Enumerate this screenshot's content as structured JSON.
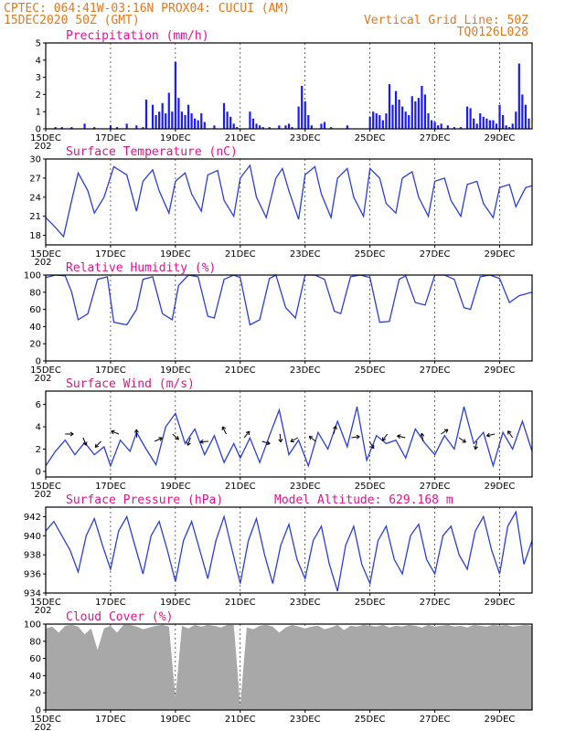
{
  "header": {
    "line1_left": "CPTEC:   064:41W-03:16N   PROX04: CUCUI (AM)",
    "line2_left": "15DEC2020 50Z (GMT)",
    "line2_right": "Vertical Grid Line: 50Z",
    "line3_right": "TQ0126L028"
  },
  "x_axis": {
    "tick_labels": [
      "15DEC",
      "17DEC",
      "19DEC",
      "21DEC",
      "23DEC",
      "25DEC",
      "27DEC",
      "29DEC"
    ],
    "tick_days": [
      0,
      2,
      4,
      6,
      8,
      10,
      12,
      14
    ],
    "year_fragment": "202",
    "xlim": [
      0,
      15
    ]
  },
  "chart_data": [
    {
      "type": "bar",
      "title": "Precipitation (mm/h)",
      "ylim": [
        0,
        5
      ],
      "yticks": [
        "0",
        "1",
        "2",
        "3",
        "4",
        "5"
      ],
      "color": "#1a1aff",
      "x_days": [
        0.3,
        0.5,
        0.8,
        1.2,
        1.5,
        2.0,
        2.2,
        2.5,
        2.8,
        3.0,
        3.1,
        3.3,
        3.4,
        3.5,
        3.6,
        3.7,
        3.8,
        3.9,
        4.0,
        4.1,
        4.2,
        4.3,
        4.4,
        4.5,
        4.6,
        4.7,
        4.8,
        4.9,
        5.2,
        5.5,
        5.6,
        5.7,
        5.8,
        5.9,
        6.3,
        6.4,
        6.5,
        6.6,
        6.7,
        6.9,
        7.2,
        7.4,
        7.5,
        7.6,
        7.8,
        7.9,
        8.0,
        8.1,
        8.2,
        8.5,
        8.6,
        8.8,
        9.3,
        10.0,
        10.1,
        10.2,
        10.3,
        10.4,
        10.5,
        10.6,
        10.7,
        10.8,
        10.9,
        11.0,
        11.1,
        11.2,
        11.3,
        11.4,
        11.5,
        11.6,
        11.7,
        11.8,
        11.9,
        12.0,
        12.1,
        12.2,
        12.4,
        12.6,
        12.8,
        13.0,
        13.1,
        13.2,
        13.3,
        13.4,
        13.5,
        13.6,
        13.7,
        13.8,
        13.9,
        14.0,
        14.1,
        14.2,
        14.3,
        14.4,
        14.5,
        14.6,
        14.7,
        14.8,
        14.9
      ],
      "values": [
        0.1,
        0.1,
        0.1,
        0.3,
        0.1,
        0.2,
        0.1,
        0.3,
        0.2,
        0.1,
        1.7,
        1.4,
        0.8,
        1.0,
        1.5,
        0.9,
        2.1,
        1.0,
        3.9,
        1.8,
        1.0,
        0.8,
        1.4,
        0.9,
        0.6,
        0.5,
        0.9,
        0.4,
        0.2,
        1.5,
        1.0,
        0.7,
        0.3,
        0.1,
        1.0,
        0.6,
        0.3,
        0.2,
        0.1,
        0.1,
        0.2,
        0.2,
        0.3,
        0.1,
        1.3,
        2.5,
        1.6,
        0.8,
        0.2,
        0.3,
        0.4,
        0.1,
        0.2,
        0.7,
        1.0,
        0.9,
        0.8,
        0.5,
        0.9,
        2.6,
        1.4,
        2.2,
        1.7,
        1.3,
        1.0,
        0.8,
        1.9,
        1.6,
        1.8,
        2.5,
        2.0,
        0.9,
        0.5,
        0.4,
        0.2,
        0.3,
        0.2,
        0.1,
        0.1,
        1.3,
        1.2,
        0.6,
        0.3,
        0.9,
        0.7,
        0.6,
        0.5,
        0.5,
        0.3,
        1.4,
        0.8,
        0.2,
        0.1,
        0.3,
        1.0,
        3.8,
        2.0,
        1.4,
        0.6
      ]
    },
    {
      "type": "line",
      "title": "Surface Temperature (nC)",
      "ylim": [
        16.5,
        30
      ],
      "yticks": [
        "18",
        "21",
        "24",
        "27",
        "30"
      ],
      "ytick_values": [
        18,
        21,
        24,
        27,
        30
      ],
      "x_days": [
        0,
        0.25,
        0.55,
        0.8,
        1.0,
        1.3,
        1.5,
        1.8,
        2.1,
        2.5,
        2.8,
        3.0,
        3.3,
        3.5,
        3.8,
        4.0,
        4.3,
        4.5,
        4.8,
        5.0,
        5.3,
        5.5,
        5.8,
        6.0,
        6.3,
        6.5,
        6.8,
        7.1,
        7.3,
        7.5,
        7.8,
        8.0,
        8.3,
        8.5,
        8.8,
        9.0,
        9.3,
        9.5,
        9.8,
        10.0,
        10.3,
        10.5,
        10.8,
        11.0,
        11.3,
        11.5,
        11.8,
        12.0,
        12.3,
        12.5,
        12.8,
        13.0,
        13.3,
        13.5,
        13.8,
        14.0,
        14.3,
        14.5,
        14.8,
        15.0
      ],
      "values": [
        20.8,
        19.5,
        17.8,
        23.5,
        27.8,
        25.0,
        21.5,
        24.0,
        28.8,
        27.5,
        21.8,
        26.5,
        28.3,
        25.0,
        21.5,
        26.5,
        27.8,
        24.5,
        21.8,
        27.5,
        28.2,
        23.5,
        21.0,
        27.0,
        29.0,
        24.0,
        20.8,
        27.0,
        28.5,
        25.0,
        20.5,
        27.5,
        28.8,
        24.5,
        20.8,
        27.0,
        28.5,
        24.0,
        21.0,
        28.5,
        27.0,
        23.0,
        21.5,
        27.0,
        28.0,
        24.0,
        21.0,
        26.5,
        27.0,
        23.5,
        21.0,
        26.0,
        26.5,
        23.0,
        20.8,
        25.5,
        26.0,
        22.5,
        25.5,
        25.8
      ],
      "color": "#2b3fd6"
    },
    {
      "type": "line",
      "title": "Relative Humidity (%)",
      "ylim": [
        0,
        100
      ],
      "yticks": [
        "0",
        "20",
        "40",
        "60",
        "80",
        "100"
      ],
      "ytick_values": [
        0,
        20,
        40,
        60,
        80,
        100
      ],
      "x_days": [
        0,
        0.3,
        0.6,
        0.8,
        1.0,
        1.3,
        1.6,
        1.9,
        2.1,
        2.5,
        2.8,
        3.0,
        3.3,
        3.6,
        3.9,
        4.1,
        4.4,
        4.7,
        5.0,
        5.2,
        5.5,
        5.8,
        6.0,
        6.3,
        6.6,
        6.9,
        7.1,
        7.4,
        7.7,
        8.0,
        8.3,
        8.6,
        8.9,
        9.1,
        9.4,
        9.7,
        10.0,
        10.3,
        10.6,
        10.9,
        11.1,
        11.4,
        11.7,
        12.0,
        12.3,
        12.6,
        12.9,
        13.1,
        13.4,
        13.7,
        14.0,
        14.3,
        14.6,
        15.0
      ],
      "values": [
        97,
        100,
        99,
        80,
        48,
        55,
        95,
        98,
        45,
        42,
        60,
        95,
        98,
        55,
        48,
        88,
        100,
        98,
        52,
        50,
        95,
        100,
        97,
        42,
        48,
        96,
        100,
        62,
        50,
        100,
        100,
        95,
        58,
        55,
        98,
        100,
        97,
        45,
        46,
        95,
        99,
        68,
        65,
        100,
        100,
        95,
        62,
        60,
        98,
        100,
        96,
        68,
        76,
        80
      ],
      "color": "#2b3fd6"
    },
    {
      "type": "line",
      "title": "Surface Wind (m/s)",
      "ylim": [
        -0.5,
        7.2
      ],
      "yticks": [
        "0",
        "2",
        "4",
        "6"
      ],
      "ytick_values": [
        0,
        2,
        4,
        6
      ],
      "x_days": [
        0,
        0.3,
        0.6,
        0.9,
        1.2,
        1.5,
        1.8,
        2.0,
        2.3,
        2.6,
        2.8,
        3.1,
        3.4,
        3.7,
        4.0,
        4.3,
        4.6,
        4.9,
        5.2,
        5.5,
        5.8,
        6.0,
        6.3,
        6.6,
        6.9,
        7.2,
        7.5,
        7.8,
        8.1,
        8.4,
        8.7,
        9.0,
        9.3,
        9.6,
        9.9,
        10.2,
        10.5,
        10.8,
        11.1,
        11.4,
        11.7,
        12.0,
        12.3,
        12.6,
        12.9,
        13.2,
        13.5,
        13.8,
        14.1,
        14.4,
        14.7,
        15.0
      ],
      "values": [
        0.5,
        1.8,
        2.8,
        1.5,
        2.6,
        1.5,
        2.2,
        0.5,
        2.8,
        1.8,
        3.5,
        2.0,
        0.6,
        4.0,
        5.2,
        2.5,
        3.8,
        1.5,
        3.2,
        0.8,
        2.5,
        1.2,
        3.0,
        0.8,
        3.2,
        5.5,
        1.5,
        2.8,
        0.5,
        3.5,
        2.0,
        4.5,
        2.2,
        5.8,
        1.0,
        3.2,
        2.5,
        2.8,
        1.2,
        3.8,
        2.5,
        1.5,
        3.2,
        2.0,
        5.8,
        2.5,
        3.5,
        0.5,
        3.5,
        2.0,
        4.5,
        1.8
      ],
      "color": "#2b3fd6",
      "arrows_count": 26
    },
    {
      "type": "line",
      "title": "Surface Pressure (hPa)",
      "annotation": "Model Altitude: 629.168  m",
      "ylim": [
        934,
        943
      ],
      "yticks": [
        "934",
        "936",
        "938",
        "940",
        "942"
      ],
      "ytick_values": [
        934,
        936,
        938,
        940,
        942
      ],
      "x_days": [
        0,
        0.25,
        0.5,
        0.75,
        1.0,
        1.25,
        1.5,
        1.75,
        2.0,
        2.25,
        2.5,
        2.75,
        3.0,
        3.25,
        3.5,
        3.75,
        4.0,
        4.25,
        4.5,
        4.75,
        5.0,
        5.25,
        5.5,
        5.75,
        6.0,
        6.25,
        6.5,
        6.75,
        7.0,
        7.25,
        7.5,
        7.75,
        8.0,
        8.25,
        8.5,
        8.75,
        9.0,
        9.25,
        9.5,
        9.75,
        10.0,
        10.25,
        10.5,
        10.75,
        11.0,
        11.25,
        11.5,
        11.75,
        12.0,
        12.25,
        12.5,
        12.75,
        13.0,
        13.25,
        13.5,
        13.75,
        14.0,
        14.25,
        14.5,
        14.75,
        15.0
      ],
      "values": [
        940.5,
        941.5,
        940.0,
        938.5,
        936.2,
        940.0,
        941.8,
        939.0,
        936.5,
        940.5,
        942.0,
        939.0,
        936.0,
        940.0,
        941.5,
        938.5,
        935.2,
        939.5,
        941.5,
        938.5,
        935.5,
        939.5,
        942.0,
        938.5,
        935.0,
        939.5,
        941.8,
        938.0,
        935.0,
        939.0,
        941.2,
        937.5,
        935.5,
        939.5,
        941.0,
        937.0,
        934.2,
        939.0,
        941.0,
        937.0,
        935.0,
        939.5,
        941.0,
        937.5,
        936.0,
        940.0,
        941.2,
        937.5,
        936.0,
        940.0,
        941.0,
        938.0,
        936.5,
        940.5,
        942.0,
        938.5,
        936.0,
        941.0,
        942.5,
        937.0,
        939.5
      ],
      "color": "#2b3fd6"
    },
    {
      "type": "area",
      "title": "Cloud Cover (%)",
      "ylim": [
        0,
        100
      ],
      "yticks": [
        "0",
        "20",
        "40",
        "60",
        "80",
        "100"
      ],
      "ytick_values": [
        0,
        20,
        40,
        60,
        80,
        100
      ],
      "color": "#a8a8a8",
      "x_days": [
        0,
        0.2,
        0.4,
        0.6,
        0.8,
        1.0,
        1.2,
        1.4,
        1.6,
        1.8,
        2.0,
        2.2,
        2.4,
        2.6,
        2.8,
        3.0,
        3.2,
        3.4,
        3.6,
        3.8,
        4.0,
        4.2,
        4.4,
        4.6,
        4.8,
        5.0,
        5.2,
        5.4,
        5.6,
        5.8,
        6.0,
        6.2,
        6.4,
        6.6,
        6.8,
        7.0,
        7.2,
        7.4,
        7.6,
        7.8,
        8.0,
        8.2,
        8.4,
        8.6,
        8.8,
        9.0,
        9.2,
        9.4,
        9.6,
        9.8,
        10.0,
        10.2,
        10.4,
        10.6,
        10.8,
        11.0,
        11.2,
        11.4,
        11.6,
        11.8,
        12.0,
        12.2,
        12.4,
        12.6,
        12.8,
        13.0,
        13.2,
        13.4,
        13.6,
        13.8,
        14.0,
        14.2,
        14.4,
        14.6,
        14.8,
        15.0
      ],
      "values": [
        95,
        97,
        90,
        98,
        99,
        97,
        88,
        95,
        70,
        95,
        98,
        90,
        99,
        99,
        97,
        94,
        96,
        98,
        99,
        97,
        15,
        98,
        95,
        99,
        97,
        99,
        98,
        96,
        99,
        99,
        5,
        96,
        94,
        98,
        99,
        97,
        90,
        96,
        99,
        97,
        95,
        97,
        98,
        94,
        96,
        99,
        93,
        98,
        97,
        99,
        98,
        97,
        99,
        96,
        98,
        97,
        99,
        98,
        96,
        99,
        97,
        98,
        99,
        97,
        98,
        96,
        99,
        98,
        97,
        99,
        98,
        99,
        97,
        98,
        99,
        98
      ]
    }
  ]
}
